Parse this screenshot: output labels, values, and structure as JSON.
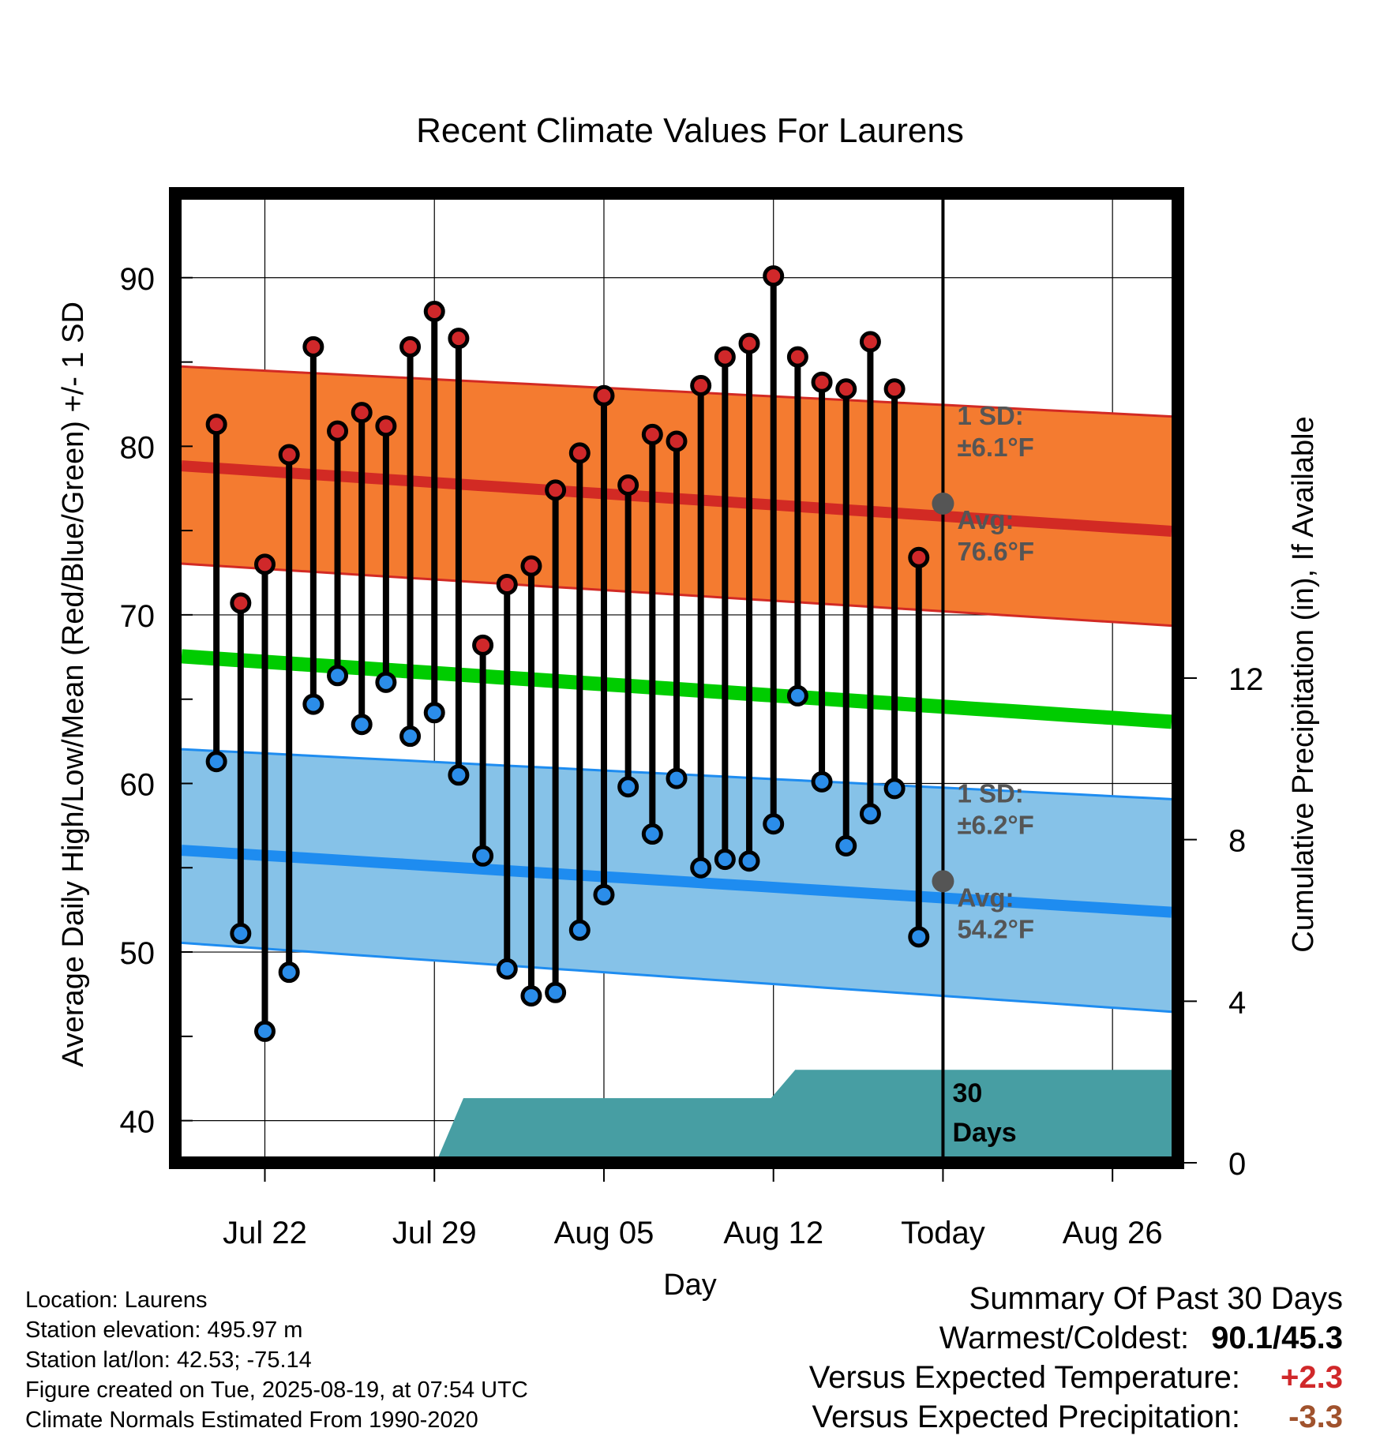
{
  "chart_data": {
    "type": "line",
    "title": "Recent Climate Values For Laurens",
    "xlabel": "Day",
    "ylabel": "Average Daily High/Low/Mean (Red/Blue/Green) +/- 1 SD",
    "y2label": "Cumulative Precipitation (in), If Available",
    "ylim": [
      37.5,
      95
    ],
    "y2lim": [
      0,
      24
    ],
    "x_tick_labels": [
      "Jul 22",
      "Jul 29",
      "Aug 05",
      "Aug 12",
      "Today",
      "Aug 26"
    ],
    "x_tick_days": [
      -28,
      -21,
      -14,
      -7,
      0,
      7
    ],
    "y_ticks": [
      40,
      50,
      60,
      70,
      80,
      90
    ],
    "y2_ticks": [
      0,
      4,
      8,
      12
    ],
    "grid": true,
    "day_range": [
      -31.7,
      9.7
    ],
    "days": [
      -30,
      -29,
      -28,
      -27,
      -26,
      -25,
      -24,
      -23,
      -22,
      -21,
      -20,
      -19,
      -18,
      -17,
      -16,
      -15,
      -14,
      -13,
      -12,
      -11,
      -10,
      -9,
      -8,
      -7,
      -6,
      -5,
      -4,
      -3,
      -2,
      -1
    ],
    "highs": [
      81.3,
      70.7,
      73.0,
      79.5,
      85.9,
      80.9,
      82.0,
      81.2,
      85.9,
      88.0,
      86.4,
      68.2,
      71.8,
      72.9,
      77.4,
      79.6,
      83.0,
      77.7,
      80.7,
      80.3,
      83.6,
      85.3,
      86.1,
      90.1,
      85.3,
      83.8,
      83.4,
      86.2,
      83.4,
      73.4
    ],
    "lows": [
      61.3,
      51.1,
      45.3,
      48.8,
      64.7,
      66.4,
      63.5,
      66.0,
      62.8,
      64.2,
      60.5,
      55.7,
      49.0,
      47.4,
      47.6,
      51.3,
      53.4,
      59.8,
      57.0,
      60.3,
      55.0,
      55.5,
      55.4,
      57.6,
      65.2,
      60.1,
      56.3,
      58.2,
      59.7,
      50.9
    ],
    "normal_days": [
      -31,
      9
    ],
    "normal_high_avg": [
      78.8,
      75.0
    ],
    "normal_high_upper": [
      84.7,
      81.8
    ],
    "normal_high_lower": [
      73.0,
      69.4
    ],
    "normal_low_avg": [
      56.0,
      52.4
    ],
    "normal_low_upper": [
      62.0,
      59.1
    ],
    "normal_low_lower": [
      50.5,
      46.5
    ],
    "normal_mean": [
      67.5,
      63.7
    ],
    "precip_steps": [
      [
        -31.7,
        0
      ],
      [
        -24,
        0
      ],
      [
        -24,
        0.05
      ],
      [
        -20.9,
        0.05
      ],
      [
        -19.8,
        1.6
      ],
      [
        -7.1,
        1.6
      ],
      [
        -6.1,
        2.3
      ],
      [
        9.7,
        2.3
      ]
    ],
    "today_high": {
      "value": 76.6,
      "label_sd": "1 SD:",
      "label_sd_val": "±6.1°F",
      "label_avg": "Avg:",
      "label_avg_val": "76.6°F"
    },
    "today_low": {
      "value": 54.2,
      "label_sd": "1 SD:",
      "label_sd_val": "±6.2°F",
      "label_avg": "Avg:",
      "label_avg_val": "54.2°F"
    },
    "days_label": [
      "30",
      "Days"
    ],
    "colors": {
      "high_band": "#f47b30",
      "high_line": "#d22a24",
      "low_band": "#86c2e8",
      "low_line": "#1e8cf0",
      "mean_line": "#00cc00",
      "precip": "#479ea3",
      "high_dot": "#d0282a",
      "low_dot": "#2b8de9",
      "today_dot": "#555555",
      "annot": "#555555"
    }
  },
  "info": {
    "location": "Location: Laurens",
    "elevation": "Station elevation: 495.97 m",
    "latlon": "Station lat/lon: 42.53; -75.14",
    "created": "Figure created on Tue, 2025-08-19, at 07:54 UTC",
    "normals": "Climate Normals Estimated From 1990-2020"
  },
  "summary": {
    "title": "Summary Of Past 30 Days",
    "warm_label": "Warmest/Coldest:",
    "warm_value": "90.1/45.3",
    "temp_label": "Versus Expected Temperature:",
    "temp_value": "+2.3",
    "temp_color": "#d0282a",
    "precip_label": "Versus Expected Precipitation:",
    "precip_value": "-3.3",
    "precip_color": "#a0522d"
  }
}
